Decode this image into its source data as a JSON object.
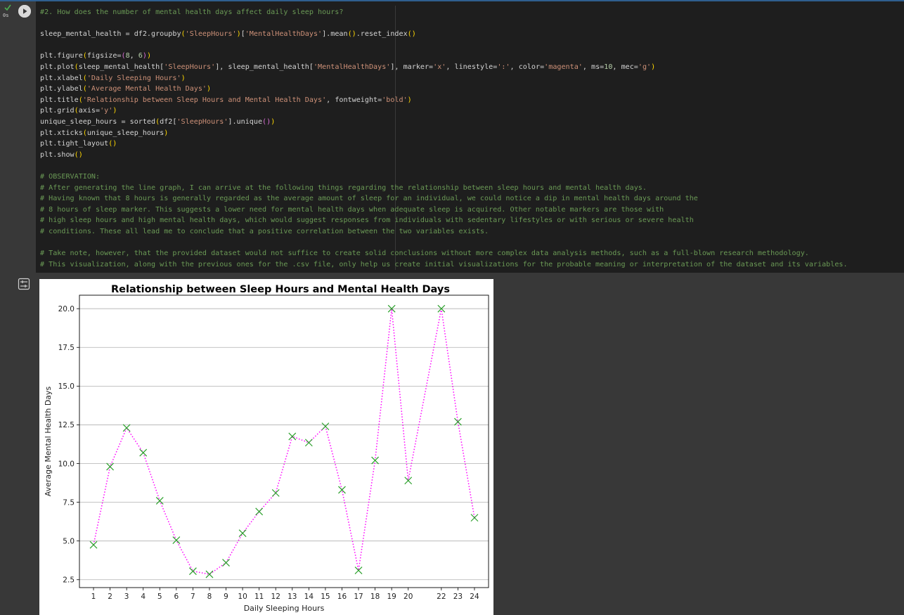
{
  "cell": {
    "exec_time": "0s",
    "status_icon": "check-icon",
    "run_icon": "play-icon",
    "output_icon": "output-settings-icon"
  },
  "code_lines": [
    [
      {
        "t": "#2. How does the number of mental health days affect daily sleep hours?",
        "c": "com"
      }
    ],
    [],
    [
      {
        "t": "sleep_mental_health = df2.groupby"
      },
      {
        "t": "(",
        "c": "br1"
      },
      {
        "t": "'SleepHours'",
        "c": "str"
      },
      {
        "t": ")",
        "c": "br1"
      },
      {
        "t": "["
      },
      {
        "t": "'MentalHealthDays'",
        "c": "str"
      },
      {
        "t": "].mean"
      },
      {
        "t": "()",
        "c": "br1"
      },
      {
        "t": ".reset_index"
      },
      {
        "t": "()",
        "c": "br1"
      }
    ],
    [],
    [
      {
        "t": "plt.figure"
      },
      {
        "t": "(",
        "c": "br1"
      },
      {
        "t": "figsize="
      },
      {
        "t": "(",
        "c": "br2"
      },
      {
        "t": "8",
        "c": "num"
      },
      {
        "t": ", "
      },
      {
        "t": "6",
        "c": "num"
      },
      {
        "t": ")",
        "c": "br2"
      },
      {
        "t": ")",
        "c": "br1"
      }
    ],
    [
      {
        "t": "plt.plot"
      },
      {
        "t": "(",
        "c": "br1"
      },
      {
        "t": "sleep_mental_health["
      },
      {
        "t": "'SleepHours'",
        "c": "str"
      },
      {
        "t": "], sleep_mental_health["
      },
      {
        "t": "'MentalHealthDays'",
        "c": "str"
      },
      {
        "t": "], marker="
      },
      {
        "t": "'x'",
        "c": "str"
      },
      {
        "t": ", linestyle="
      },
      {
        "t": "':'",
        "c": "str"
      },
      {
        "t": ", color="
      },
      {
        "t": "'magenta'",
        "c": "str"
      },
      {
        "t": ", ms="
      },
      {
        "t": "10",
        "c": "num"
      },
      {
        "t": ", mec="
      },
      {
        "t": "'g'",
        "c": "str"
      },
      {
        "t": ")",
        "c": "br1"
      }
    ],
    [
      {
        "t": "plt.xlabel"
      },
      {
        "t": "(",
        "c": "br1"
      },
      {
        "t": "'Daily Sleeping Hours'",
        "c": "str"
      },
      {
        "t": ")",
        "c": "br1"
      }
    ],
    [
      {
        "t": "plt.ylabel"
      },
      {
        "t": "(",
        "c": "br1"
      },
      {
        "t": "'Average Mental Health Days'",
        "c": "str"
      },
      {
        "t": ")",
        "c": "br1"
      }
    ],
    [
      {
        "t": "plt.title"
      },
      {
        "t": "(",
        "c": "br1"
      },
      {
        "t": "'Relationship between Sleep Hours and Mental Health Days'",
        "c": "str"
      },
      {
        "t": ", fontweight="
      },
      {
        "t": "'bold'",
        "c": "str"
      },
      {
        "t": ")",
        "c": "br1"
      }
    ],
    [
      {
        "t": "plt.grid"
      },
      {
        "t": "(",
        "c": "br1"
      },
      {
        "t": "axis="
      },
      {
        "t": "'y'",
        "c": "str"
      },
      {
        "t": ")",
        "c": "br1"
      }
    ],
    [
      {
        "t": "unique_sleep_hours = sorted"
      },
      {
        "t": "(",
        "c": "br1"
      },
      {
        "t": "df2["
      },
      {
        "t": "'SleepHours'",
        "c": "str"
      },
      {
        "t": "].unique"
      },
      {
        "t": "()",
        "c": "br2"
      },
      {
        "t": ")",
        "c": "br1"
      }
    ],
    [
      {
        "t": "plt.xticks"
      },
      {
        "t": "(",
        "c": "br1"
      },
      {
        "t": "unique_sleep_hours"
      },
      {
        "t": ")",
        "c": "br1"
      }
    ],
    [
      {
        "t": "plt.tight_layout"
      },
      {
        "t": "()",
        "c": "br1"
      }
    ],
    [
      {
        "t": "plt.show"
      },
      {
        "t": "()",
        "c": "br1"
      }
    ],
    [],
    [
      {
        "t": "# OBSERVATION:",
        "c": "com"
      }
    ],
    [
      {
        "t": "# After generating the line graph, I can arrive at the following things regarding the relationship between sleep hours and mental health days.",
        "c": "com"
      }
    ],
    [
      {
        "t": "# Having known that 8 hours is generally regarded as the average amount of sleep for an individual, we could notice a dip in mental health days around the",
        "c": "com"
      }
    ],
    [
      {
        "t": "# 8 hours of sleep marker. This suggests a lower need for mental health days when adequate sleep is acquired. Other notable markers are those with",
        "c": "com"
      }
    ],
    [
      {
        "t": "# high sleep hours and high mental health days, which would suggest responses from individuals with sedentary lifestyles or with serious or severe health",
        "c": "com"
      }
    ],
    [
      {
        "t": "# conditions. These all lead me to conclude that a positive correlation between the two variables exists.",
        "c": "com"
      }
    ],
    [],
    [
      {
        "t": "# Take note, however, that the provided dataset would not suffice to create solid conclusions without more complex data analysis methods, such as a full-blown research methodology.",
        "c": "com"
      }
    ],
    [
      {
        "t": "# This visualization, along with the previous ones for the .csv file, only help us create initial visualizations for the probable meaning or interpretation of the dataset and its variables.",
        "c": "com"
      }
    ]
  ],
  "chart_data": {
    "type": "line",
    "title": "Relationship between Sleep Hours and Mental Health Days",
    "xlabel": "Daily Sleeping Hours",
    "ylabel": "Average Mental Health Days",
    "x": [
      1,
      2,
      3,
      4,
      5,
      6,
      7,
      8,
      9,
      10,
      11,
      12,
      13,
      14,
      15,
      16,
      17,
      18,
      19,
      20,
      22,
      23,
      24
    ],
    "y": [
      4.75,
      9.8,
      12.3,
      10.7,
      7.6,
      5.05,
      3.05,
      2.85,
      3.6,
      5.5,
      6.9,
      8.1,
      11.75,
      11.35,
      12.4,
      8.3,
      3.1,
      10.2,
      20.0,
      8.9,
      20.0,
      12.7,
      6.5
    ],
    "xticks": [
      "1",
      "2",
      "3",
      "4",
      "5",
      "6",
      "7",
      "8",
      "9",
      "10",
      "11",
      "12",
      "13",
      "14",
      "15",
      "16",
      "17",
      "18",
      "19",
      "20",
      "22",
      "23",
      "24"
    ],
    "yticks": [
      "2.5",
      "5.0",
      "7.5",
      "10.0",
      "12.5",
      "15.0",
      "17.5",
      "20.0"
    ],
    "ytick_values": [
      2.5,
      5.0,
      7.5,
      10.0,
      12.5,
      15.0,
      17.5,
      20.0
    ],
    "xlim": [
      0.15,
      24.85
    ],
    "ylim": [
      1.99,
      20.87
    ],
    "grid": "y",
    "line_color": "#ff00ff",
    "line_style": "dotted",
    "marker": "x",
    "marker_edge_color": "#2ca02c"
  }
}
